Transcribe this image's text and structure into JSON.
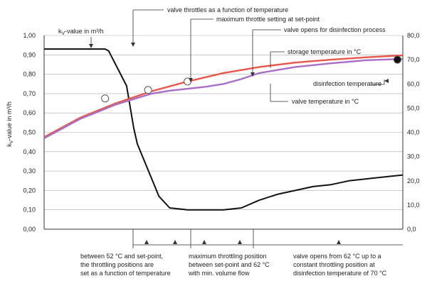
{
  "chart_data": {
    "type": "line",
    "ylabel_left_pre": "k",
    "ylabel_left_sub": "V",
    "ylabel_left_post": "-value in m³/h",
    "ylim_left": [
      0,
      1.0
    ],
    "yticks_left": [
      "0,00",
      "0,10",
      "0,20",
      "0,30",
      "0,40",
      "0,50",
      "0,60",
      "0,70",
      "0,80",
      "0,90",
      "1,00"
    ],
    "ylim_right": [
      0,
      80
    ],
    "yticks_right": [
      "0,0",
      "10,0",
      "20,0",
      "30,0",
      "40,0",
      "50,0",
      "60,0",
      "70,0",
      "80,0"
    ],
    "grid": true,
    "series": [
      {
        "name": "kV-value in m³/h",
        "axis": "left",
        "color": "#111111",
        "x": [
          0,
          0.17,
          0.18,
          0.23,
          0.25,
          0.26,
          0.3,
          0.32,
          0.35,
          0.4,
          0.45,
          0.5,
          0.55,
          0.6,
          0.65,
          0.7,
          0.75,
          0.8,
          0.85,
          0.9,
          0.95,
          1.0
        ],
        "values": [
          0.93,
          0.93,
          0.92,
          0.74,
          0.52,
          0.44,
          0.26,
          0.17,
          0.11,
          0.1,
          0.1,
          0.1,
          0.11,
          0.15,
          0.18,
          0.2,
          0.22,
          0.23,
          0.25,
          0.26,
          0.27,
          0.28
        ]
      },
      {
        "name": "storage temperature in °C",
        "axis": "right",
        "color": "#e8574a",
        "x": [
          0,
          0.1,
          0.2,
          0.3,
          0.4,
          0.5,
          0.6,
          0.7,
          0.8,
          0.9,
          1.0
        ],
        "values": [
          38,
          46,
          52,
          57,
          61,
          64.5,
          67,
          68.8,
          70,
          71,
          71.8
        ]
      },
      {
        "name": "valve temperature in °C",
        "axis": "right",
        "color": "#a86fc6",
        "x": [
          0,
          0.1,
          0.2,
          0.3,
          0.35,
          0.4,
          0.45,
          0.5,
          0.55,
          0.6,
          0.7,
          0.8,
          0.9,
          1.0
        ],
        "values": [
          37.5,
          45.5,
          51.5,
          56,
          57.2,
          58,
          58.8,
          60,
          62,
          64.5,
          67,
          68.5,
          69.8,
          70.3
        ]
      }
    ],
    "markers": [
      {
        "x": 0.17,
        "y": 54,
        "style": "open"
      },
      {
        "x": 0.29,
        "y": 57.5,
        "style": "open"
      },
      {
        "x": 0.4,
        "y": 61,
        "style": "open"
      },
      {
        "x": 0.985,
        "y": 70,
        "style": "filled"
      }
    ],
    "annotations": [
      "valve throttles as a function of temperature",
      "maximum throttle setting at set-point",
      "valve opens for disinfection process",
      "storage temperature in °C",
      "disinfection temperature",
      "valve temperature in °C"
    ],
    "kv_label_pre": "k",
    "kv_label_sub": "V",
    "kv_label_post": "-value in m³/h",
    "phases": [
      {
        "lines": [
          "between 52 °C and set-point,",
          "the throttling positions are",
          "set as a function of temperature"
        ]
      },
      {
        "lines": [
          "maximum throttling position",
          "between set-point and 62 °C",
          "with min. volume flow"
        ]
      },
      {
        "lines": [
          "valve opens from 62 °C up to a",
          "constant throttling position at",
          "disinfection temperature of 70 °C"
        ]
      }
    ]
  }
}
